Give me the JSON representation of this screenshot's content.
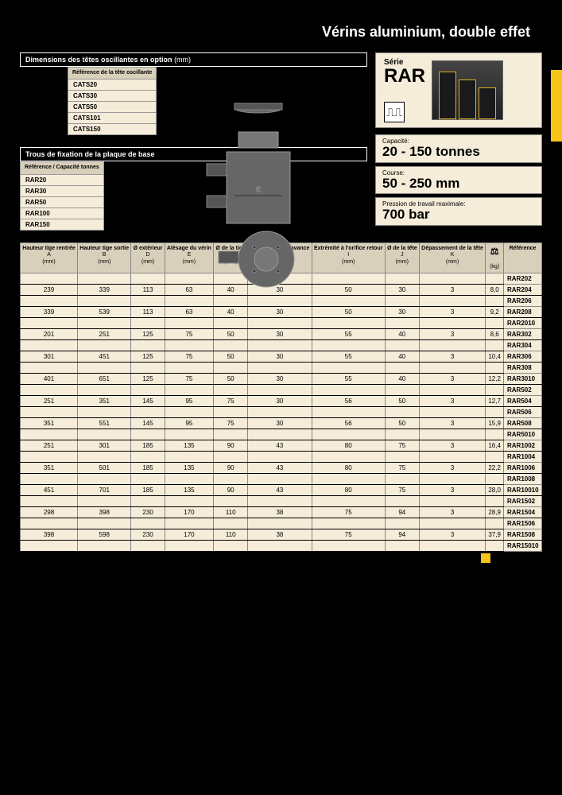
{
  "page": {
    "title": "Vérins aluminium, double effet"
  },
  "head_oscillante": {
    "section_title": "Dimensions des têtes oscillantes en option",
    "unit": "(mm)",
    "col_header": "Référence de la tête oscillante",
    "rows": [
      "CATS20",
      "CATS30",
      "CATS50",
      "CATS101",
      "CATS150"
    ]
  },
  "base_plate": {
    "section_title": "Trous de fixation de la plaque de base",
    "col_header": "Référence / Capacité tonnes",
    "rows": [
      "RAR20",
      "RAR30",
      "RAR50",
      "RAR100",
      "RAR150"
    ]
  },
  "serie": {
    "label": "Série",
    "name": "RAR"
  },
  "specs": [
    {
      "label": "Capacité:",
      "value": "20 - 150 tonnes"
    },
    {
      "label": "Course:",
      "value": "50 - 250 mm"
    },
    {
      "label": "Pression de travail maximale:",
      "value": "700 bar"
    }
  ],
  "main_table": {
    "columns": [
      {
        "hdr": "Hauteur tige rentrée",
        "sub": "A",
        "unit": "(mm)"
      },
      {
        "hdr": "Hauteur tige sortie",
        "sub": "B",
        "unit": "(mm)"
      },
      {
        "hdr": "Ø extérieur",
        "sub": "D",
        "unit": "(mm)"
      },
      {
        "hdr": "Alésage du vérin",
        "sub": "E",
        "unit": "(mm)"
      },
      {
        "hdr": "Ø de la tige",
        "sub": "F",
        "unit": "(mm)"
      },
      {
        "hdr": "Base à l'orifice avance",
        "sub": "H",
        "unit": "(mm)"
      },
      {
        "hdr": "Extrémité à l'orifice retour",
        "sub": "I",
        "unit": "(mm)"
      },
      {
        "hdr": "Ø de la tête",
        "sub": "J",
        "unit": "(mm)"
      },
      {
        "hdr": "Dépassement de la tête",
        "sub": "K",
        "unit": "(mm)"
      },
      {
        "hdr": "",
        "sub": "",
        "unit": "(kg)",
        "icon": "weight"
      },
      {
        "hdr": "Référence",
        "sub": "",
        "unit": ""
      }
    ],
    "rows": [
      {
        "blank": true,
        "ref": "RAR202"
      },
      {
        "data": [
          "239",
          "339",
          "113",
          "63",
          "40",
          "30",
          "50",
          "30",
          "3",
          "8,0"
        ],
        "ref": "RAR204"
      },
      {
        "blank": true,
        "ref": "RAR206"
      },
      {
        "data": [
          "339",
          "539",
          "113",
          "63",
          "40",
          "30",
          "50",
          "30",
          "3",
          "9,2"
        ],
        "ref": "RAR208"
      },
      {
        "blank": true,
        "ref": "RAR2010"
      },
      {
        "data": [
          "201",
          "251",
          "125",
          "75",
          "50",
          "30",
          "55",
          "40",
          "3",
          "8,6"
        ],
        "ref": "RAR302"
      },
      {
        "blank": true,
        "ref": "RAR304"
      },
      {
        "data": [
          "301",
          "451",
          "125",
          "75",
          "50",
          "30",
          "55",
          "40",
          "3",
          "10,4"
        ],
        "ref": "RAR306"
      },
      {
        "blank": true,
        "ref": "RAR308"
      },
      {
        "data": [
          "401",
          "651",
          "125",
          "75",
          "50",
          "30",
          "55",
          "40",
          "3",
          "12,2"
        ],
        "ref": "RAR3010"
      },
      {
        "blank": true,
        "ref": "RAR502"
      },
      {
        "data": [
          "251",
          "351",
          "145",
          "95",
          "75",
          "30",
          "56",
          "50",
          "3",
          "12,7"
        ],
        "ref": "RAR504"
      },
      {
        "blank": true,
        "ref": "RAR506"
      },
      {
        "data": [
          "351",
          "551",
          "145",
          "95",
          "75",
          "30",
          "56",
          "50",
          "3",
          "15,9"
        ],
        "ref": "RAR508"
      },
      {
        "blank": true,
        "ref": "RAR5010"
      },
      {
        "data": [
          "251",
          "301",
          "185",
          "135",
          "90",
          "43",
          "80",
          "75",
          "3",
          "16,4"
        ],
        "ref": "RAR1002"
      },
      {
        "blank": true,
        "ref": "RAR1004"
      },
      {
        "data": [
          "351",
          "501",
          "185",
          "135",
          "90",
          "43",
          "80",
          "75",
          "3",
          "22,2"
        ],
        "ref": "RAR1006"
      },
      {
        "blank": true,
        "ref": "RAR1008"
      },
      {
        "data": [
          "451",
          "701",
          "185",
          "135",
          "90",
          "43",
          "80",
          "75",
          "3",
          "28,0"
        ],
        "ref": "RAR10010"
      },
      {
        "blank": true,
        "ref": "RAR1502"
      },
      {
        "data": [
          "298",
          "398",
          "230",
          "170",
          "110",
          "38",
          "75",
          "94",
          "3",
          "28,9"
        ],
        "ref": "RAR1504"
      },
      {
        "blank": true,
        "ref": "RAR1506"
      },
      {
        "data": [
          "398",
          "598",
          "230",
          "170",
          "110",
          "38",
          "75",
          "94",
          "3",
          "37,9"
        ],
        "ref": "RAR1508"
      },
      {
        "blank": true,
        "ref": "RAR15010"
      }
    ]
  },
  "colors": {
    "cream": "#f5ecd9",
    "header_bg": "#d9d0bb",
    "yellow": "#f5c518"
  }
}
